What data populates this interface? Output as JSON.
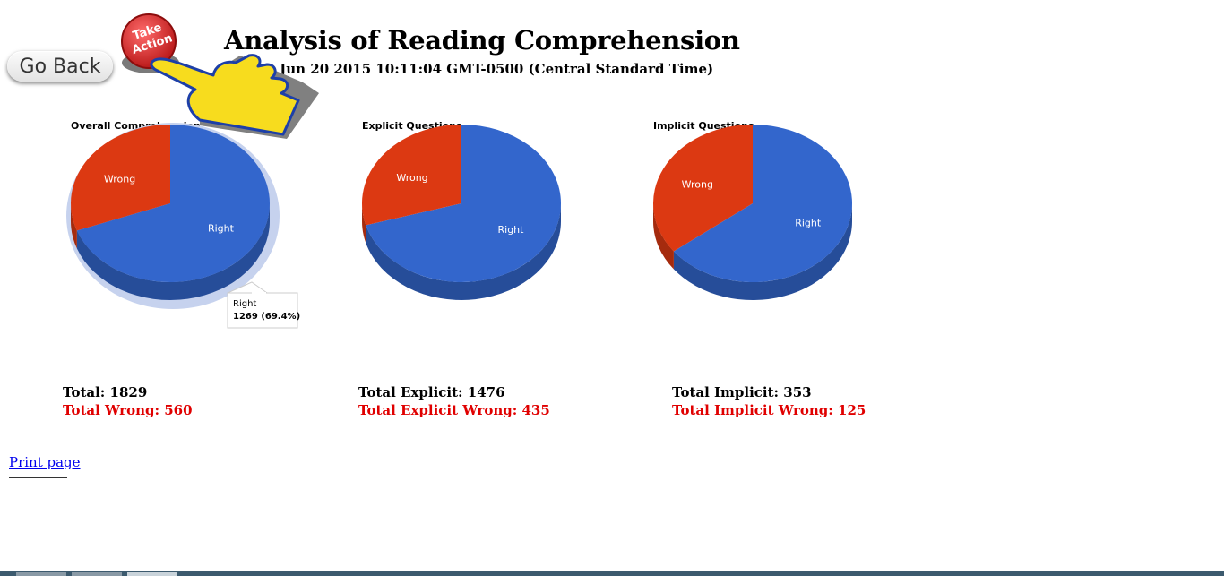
{
  "header": {
    "title": "Analysis of Reading Comprehension",
    "timestamp": "t Jun 20 2015 10:11:04 GMT-0500 (Central Standard Time)"
  },
  "nav": {
    "go_back_label": "Go Back"
  },
  "banner": {
    "line1": "Take",
    "line2": "Action",
    "accent": "#d62b2b",
    "hand_color": "#f7dc1e"
  },
  "colors": {
    "right": "#3366cc",
    "wrong": "#dc3912",
    "wrong_total_text": "#e00000"
  },
  "chart_data": [
    {
      "type": "pie",
      "title": "Overall Comprehension",
      "slices": [
        {
          "label": "Right",
          "value": 1269
        },
        {
          "label": "Wrong",
          "value": 560
        }
      ],
      "tooltip": {
        "label": "Right",
        "value": "1269 (69.4%)"
      }
    },
    {
      "type": "pie",
      "title": "Explicit Questions",
      "slices": [
        {
          "label": "Right",
          "value": 1041
        },
        {
          "label": "Wrong",
          "value": 435
        }
      ]
    },
    {
      "type": "pie",
      "title": "Implicit Questions",
      "slices": [
        {
          "label": "Right",
          "value": 228
        },
        {
          "label": "Wrong",
          "value": 125
        }
      ]
    }
  ],
  "totals": [
    {
      "total": "Total: 1829",
      "wrong": "Total Wrong: 560"
    },
    {
      "total": "Total Explicit: 1476",
      "wrong": "Total Explicit Wrong: 435"
    },
    {
      "total": "Total Implicit: 353",
      "wrong": "Total Implicit Wrong: 125"
    }
  ],
  "footer": {
    "print_label": "Print page"
  }
}
